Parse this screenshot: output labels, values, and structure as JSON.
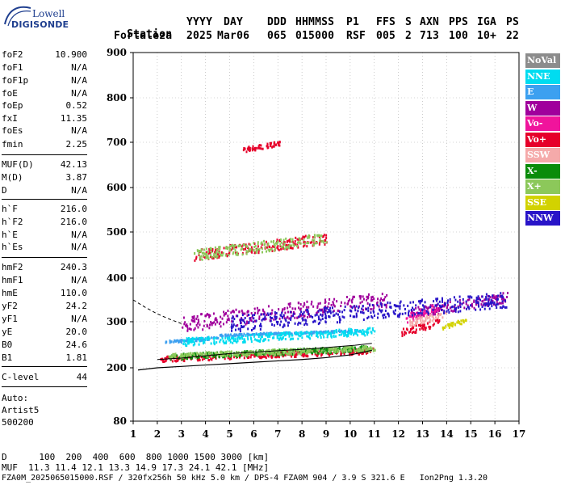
{
  "logo": {
    "line1": "Lowell",
    "line2": "DIGISONDE"
  },
  "header": {
    "labels": [
      "Station",
      "YYYY",
      "DAY",
      "DDD",
      "HHMMSS",
      "P1",
      "FFS",
      "S",
      "AXN",
      "PPS",
      "IGA",
      "PS"
    ],
    "values": [
      "Fortaleza",
      "2025",
      "Mar06",
      "065",
      "015000",
      "RSF",
      "005",
      "2",
      "713",
      "100",
      "10+",
      "22"
    ]
  },
  "params": [
    {
      "k": "foF2",
      "v": "10.900"
    },
    {
      "k": "foF1",
      "v": "N/A"
    },
    {
      "k": "foF1p",
      "v": "N/A"
    },
    {
      "k": "foE",
      "v": "N/A"
    },
    {
      "k": "foEp",
      "v": "0.52"
    },
    {
      "k": "fxI",
      "v": "11.35"
    },
    {
      "k": "foEs",
      "v": "N/A"
    },
    {
      "k": "fmin",
      "v": "2.25"
    },
    {
      "k": "MUF(D)",
      "v": "42.13"
    },
    {
      "k": "M(D)",
      "v": "3.87"
    },
    {
      "k": "D",
      "v": "N/A"
    },
    {
      "k": "h`F",
      "v": "216.0"
    },
    {
      "k": "h`F2",
      "v": "216.0"
    },
    {
      "k": "h`E",
      "v": "N/A"
    },
    {
      "k": "h`Es",
      "v": "N/A"
    },
    {
      "k": "hmF2",
      "v": "240.3"
    },
    {
      "k": "hmF1",
      "v": "N/A"
    },
    {
      "k": "hmE",
      "v": "110.0"
    },
    {
      "k": "yF2",
      "v": "24.2"
    },
    {
      "k": "yF1",
      "v": "N/A"
    },
    {
      "k": "yE",
      "v": "20.0"
    },
    {
      "k": "B0",
      "v": "24.6"
    },
    {
      "k": "B1",
      "v": "1.81"
    },
    {
      "k": "C-level",
      "v": "44"
    }
  ],
  "auto": {
    "line1": "Auto:",
    "line2": "Artist5",
    "line3": "500200"
  },
  "footer": {
    "d_row": "D      100  200  400  600  800 1000 1500 3000 [km]",
    "muf_row": "MUF  11.3 11.4 12.1 13.3 14.9 17.3 24.1 42.1 [MHz]",
    "file_row": "FZA0M_2025065015000.RSF / 320fx256h 50 kHz 5.0 km / DPS-4 FZA0M 904 / 3.9 S 321.6 E   Ion2Png 1.3.20"
  },
  "legend": [
    {
      "label": "NoVal",
      "color": "#8c8c8c"
    },
    {
      "label": "NNE",
      "color": "#00dcf0"
    },
    {
      "label": "E",
      "color": "#3ca0f0"
    },
    {
      "label": "W",
      "color": "#a0009c"
    },
    {
      "label": "Vo-",
      "color": "#f0149c"
    },
    {
      "label": "Vo+",
      "color": "#e6002a"
    },
    {
      "label": "SSW",
      "color": "#f5aaaa"
    },
    {
      "label": "X-",
      "color": "#0a8c0a"
    },
    {
      "label": "X+",
      "color": "#8cc85a"
    },
    {
      "label": "SSE",
      "color": "#d2d200"
    },
    {
      "label": "NNW",
      "color": "#2814c8"
    }
  ],
  "chart_data": {
    "type": "scatter",
    "title": "",
    "xlabel": "",
    "ylabel": "",
    "xlim": [
      1,
      17
    ],
    "ylim": [
      80,
      900
    ],
    "x_ticks": [
      1,
      2,
      3,
      4,
      5,
      6,
      7,
      8,
      9,
      10,
      11,
      12,
      13,
      14,
      15,
      16,
      17
    ],
    "y_ticks": [
      80,
      200,
      300,
      400,
      500,
      600,
      700,
      800,
      900
    ],
    "grid": true,
    "series": [
      {
        "color_key": "E",
        "clusters": [
          {
            "x": [
              2.3,
              4.5
            ],
            "y": [
              255,
              270
            ]
          },
          {
            "x": [
              4.5,
              7.5
            ],
            "y": [
              270,
              280
            ]
          },
          {
            "x": [
              7.5,
              10.5
            ],
            "y": [
              275,
              285
            ]
          }
        ]
      },
      {
        "color_key": "Vo+",
        "clusters": [
          {
            "x": [
              2.1,
              11.0
            ],
            "y": [
              215,
              245
            ]
          },
          {
            "x": [
              3.5,
              9.0
            ],
            "y": [
              440,
              500
            ]
          },
          {
            "x": [
              5.5,
              7.1
            ],
            "y": [
              680,
              705
            ]
          },
          {
            "x": [
              12.1,
              13.7
            ],
            "y": [
              270,
              310
            ]
          }
        ]
      },
      {
        "color_key": "X-",
        "clusters": [
          {
            "x": [
              2.5,
              10.8
            ],
            "y": [
              220,
              250
            ]
          }
        ]
      },
      {
        "color_key": "X+",
        "clusters": [
          {
            "x": [
              2.4,
              11.0
            ],
            "y": [
              222,
              250
            ]
          },
          {
            "x": [
              3.5,
              9.0
            ],
            "y": [
              440,
              500
            ]
          }
        ]
      },
      {
        "color_key": "W",
        "clusters": [
          {
            "x": [
              3.0,
              11.5
            ],
            "y": [
              280,
              370
            ]
          },
          {
            "x": [
              12.5,
              16.5
            ],
            "y": [
              310,
              370
            ]
          }
        ]
      },
      {
        "color_key": "Vo-",
        "clusters": [
          {
            "x": [
              12.3,
              13.8
            ],
            "y": [
              300,
              350
            ]
          }
        ]
      },
      {
        "color_key": "SSW",
        "clusters": [
          {
            "x": [
              12.4,
              14.0
            ],
            "y": [
              290,
              330
            ]
          }
        ]
      },
      {
        "color_key": "SSE",
        "clusters": [
          {
            "x": [
              13.8,
              14.8
            ],
            "y": [
              285,
              310
            ]
          }
        ]
      },
      {
        "color_key": "NNE",
        "clusters": [
          {
            "x": [
              3.0,
              11.0
            ],
            "y": [
              250,
              290
            ]
          }
        ]
      },
      {
        "color_key": "NNW",
        "clusters": [
          {
            "x": [
              5.0,
              16.5
            ],
            "y": [
              280,
              370
            ]
          }
        ]
      }
    ],
    "profile_line": {
      "x": [
        1.2,
        2.0,
        3.0,
        4.0,
        5.0,
        6.0,
        7.0,
        8.0,
        9.0,
        10.0,
        10.9
      ],
      "y": [
        195,
        200,
        203,
        206,
        209,
        212,
        215,
        218,
        222,
        228,
        238
      ]
    },
    "dashed_line": {
      "x": [
        1.0,
        1.5,
        2.0,
        2.5,
        3.0
      ],
      "y": [
        350,
        333,
        318,
        306,
        296
      ]
    },
    "trace_line": {
      "x": [
        2.0,
        3.0,
        4.0,
        5.0,
        6.0,
        7.0,
        8.0,
        8.8,
        9.5,
        10.2,
        10.9
      ],
      "y": [
        218,
        221,
        226,
        231,
        234,
        237,
        240,
        243,
        246,
        249,
        253
      ]
    }
  }
}
